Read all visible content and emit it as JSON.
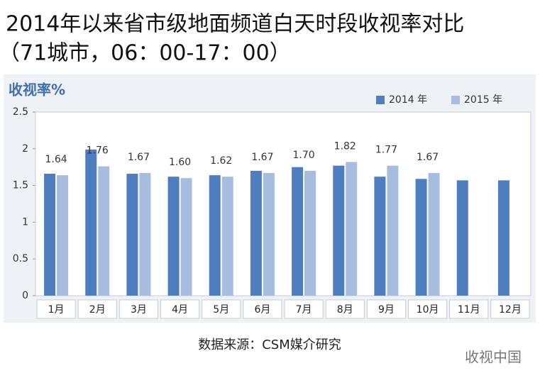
{
  "chart_data": {
    "type": "bar",
    "title": "2014年以来省市级地面频道白天时段收视率对比",
    "subtitle": "（71城市，06：00-17：00）",
    "y_label": "收视率%",
    "categories": [
      "1月",
      "2月",
      "3月",
      "4月",
      "5月",
      "6月",
      "7月",
      "8月",
      "9月",
      "10月",
      "11月",
      "12月"
    ],
    "series": [
      {
        "name": "2014 年",
        "color": "#4f7ec0",
        "values": [
          1.66,
          1.99,
          1.66,
          1.62,
          1.64,
          1.7,
          1.75,
          1.77,
          1.62,
          1.59,
          1.57,
          1.57
        ]
      },
      {
        "name": "2015 年",
        "color": "#a7bddf",
        "values": [
          1.64,
          1.76,
          1.67,
          1.6,
          1.62,
          1.67,
          1.7,
          1.82,
          1.77,
          1.67,
          null,
          null
        ],
        "value_labels": [
          "1.64",
          "1.76",
          "1.67",
          "1.60",
          "1.62",
          "1.67",
          "1.70",
          "1.82",
          "1.77",
          "1.67",
          null,
          null
        ]
      }
    ],
    "ylim": [
      0,
      2.5
    ],
    "yticks": [
      0,
      0.5,
      1,
      1.5,
      2,
      2.5
    ],
    "grid": false,
    "legend": "top-right",
    "source": "数据来源：CSM媒介研究",
    "watermark": "收视中国"
  }
}
